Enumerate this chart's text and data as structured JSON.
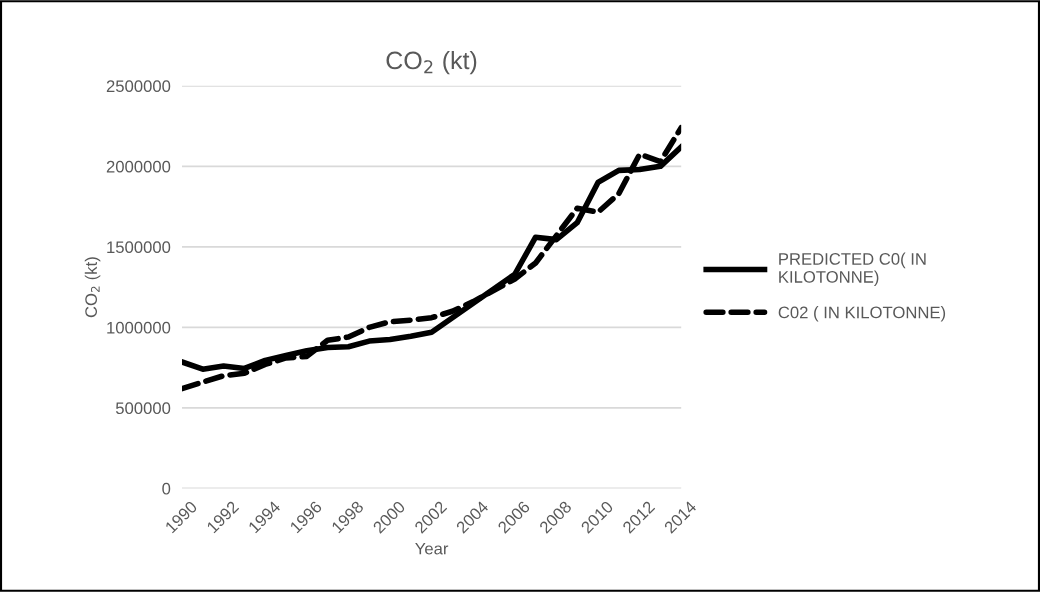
{
  "chart_data": {
    "type": "line",
    "title": "CO$_{2}$ (kt)",
    "xlabel": "Year",
    "ylabel": "CO$_{2}$ (kt)",
    "x": [
      1990,
      1991,
      1992,
      1993,
      1994,
      1995,
      1996,
      1997,
      1998,
      1999,
      2000,
      2001,
      2002,
      2003,
      2004,
      2005,
      2006,
      2007,
      2008,
      2009,
      2010,
      2011,
      2012,
      2013,
      2014
    ],
    "series": [
      {
        "name": "PREDICTED C0( IN KILOTONNE)",
        "color": "#000000",
        "line_style": "solid",
        "values": [
          785000,
          740000,
          760000,
          745000,
          795000,
          825000,
          855000,
          875000,
          880000,
          915000,
          925000,
          945000,
          970000,
          1060000,
          1150000,
          1240000,
          1330000,
          1560000,
          1545000,
          1650000,
          1900000,
          1975000,
          1980000,
          2000000,
          2120000
        ]
      },
      {
        "name": "C02 ( IN KILOTONNE)",
        "color": "#000000",
        "line_style": "dashed",
        "values": [
          620000,
          660000,
          700000,
          715000,
          770000,
          810000,
          820000,
          920000,
          940000,
          1000000,
          1035000,
          1045000,
          1060000,
          1100000,
          1160000,
          1230000,
          1300000,
          1400000,
          1570000,
          1740000,
          1715000,
          1830000,
          2075000,
          2030000,
          2240000
        ]
      }
    ],
    "xlim": [
      1990,
      2014
    ],
    "xticks": [
      1990,
      1992,
      1994,
      1996,
      1998,
      2000,
      2002,
      2004,
      2006,
      2008,
      2010,
      2012,
      2014
    ],
    "ylim": [
      0,
      2500000
    ],
    "yticks": [
      0,
      500000,
      1000000,
      1500000,
      2000000,
      2500000
    ],
    "grid": "y",
    "legend": "right",
    "marker": "none"
  }
}
